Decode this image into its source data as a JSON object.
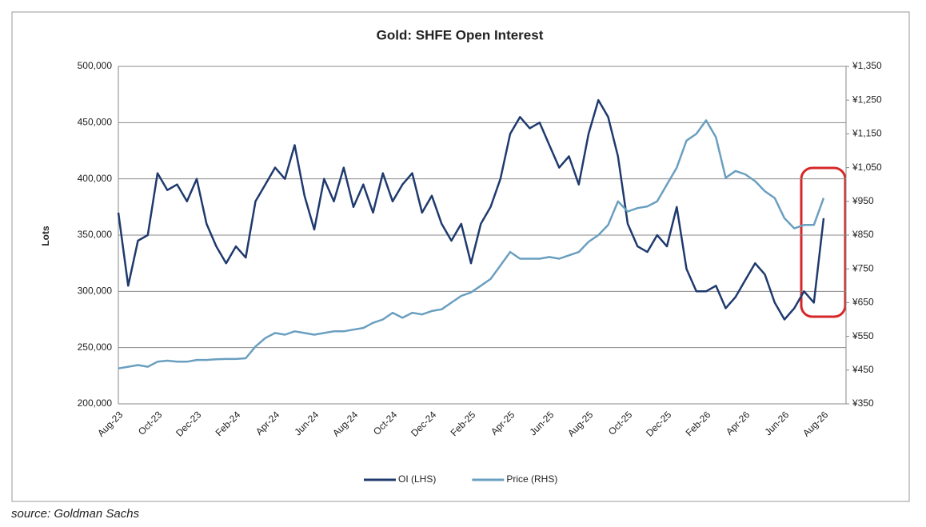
{
  "chart_data": {
    "type": "line",
    "title": "Gold: SHFE Open Interest",
    "y_label": "Lots",
    "source": "source: Goldman Sachs",
    "categories": [
      "Aug-23",
      null,
      null,
      null,
      "Oct-23",
      null,
      null,
      null,
      "Dec-23",
      null,
      null,
      null,
      "Feb-24",
      null,
      null,
      null,
      "Apr-24",
      null,
      null,
      null,
      "Jun-24",
      null,
      null,
      null,
      "Aug-24",
      null,
      null,
      null,
      "Oct-24",
      null,
      null,
      null,
      "Dec-24",
      null,
      null,
      null,
      "Feb-25",
      null,
      null,
      null,
      "Apr-25",
      null,
      null,
      null,
      "Jun-25",
      null,
      null,
      null,
      "Aug-25",
      null,
      null,
      null,
      "Oct-25",
      null,
      null,
      null,
      "Dec-25",
      null,
      null,
      null,
      "Feb-26",
      null,
      null,
      null,
      "Apr-26",
      null,
      null,
      null,
      "Jun-26",
      null,
      null,
      null,
      "Aug-26"
    ],
    "series": [
      {
        "name": "OI (LHS)",
        "color": "#1f3a6e",
        "values": [
          370000,
          305000,
          345000,
          350000,
          405000,
          390000,
          395000,
          380000,
          400000,
          360000,
          340000,
          325000,
          340000,
          330000,
          380000,
          395000,
          410000,
          400000,
          430000,
          385000,
          355000,
          400000,
          380000,
          410000,
          375000,
          395000,
          370000,
          405000,
          380000,
          395000,
          405000,
          370000,
          385000,
          360000,
          345000,
          360000,
          325000,
          360000,
          375000,
          400000,
          440000,
          455000,
          445000,
          450000,
          430000,
          410000,
          420000,
          395000,
          440000,
          470000,
          455000,
          420000,
          360000,
          340000,
          335000,
          350000,
          340000,
          375000,
          320000,
          300000,
          300000,
          305000,
          285000,
          295000,
          310000,
          325000,
          315000,
          290000,
          275000,
          285000,
          300000,
          290000,
          365000
        ]
      },
      {
        "name": "Price (RHS)",
        "color": "#6a9fc0",
        "axis": "y2",
        "values": [
          455,
          460,
          465,
          460,
          475,
          478,
          475,
          475,
          480,
          480,
          482,
          483,
          483,
          485,
          520,
          545,
          560,
          555,
          565,
          560,
          555,
          560,
          565,
          565,
          570,
          575,
          590,
          600,
          620,
          605,
          620,
          615,
          625,
          630,
          650,
          670,
          680,
          700,
          720,
          760,
          800,
          780,
          780,
          780,
          785,
          780,
          790,
          800,
          830,
          850,
          880,
          950,
          920,
          930,
          935,
          950,
          1000,
          1050,
          1130,
          1150,
          1190,
          1140,
          1020,
          1040,
          1030,
          1010,
          980,
          960,
          900,
          870,
          880,
          880,
          960
        ]
      }
    ],
    "ylim": [
      200000,
      500000
    ],
    "yticks": [
      {
        "value": 200000,
        "label": "200,000"
      },
      {
        "value": 250000,
        "label": "250,000"
      },
      {
        "value": 300000,
        "label": "300,000"
      },
      {
        "value": 350000,
        "label": "350,000"
      },
      {
        "value": 400000,
        "label": "400,000"
      },
      {
        "value": 450000,
        "label": "450,000"
      },
      {
        "value": 500000,
        "label": "500,000"
      }
    ],
    "y2lim": [
      350,
      1350
    ],
    "y2ticks": [
      {
        "value": 350,
        "label": "¥350"
      },
      {
        "value": 450,
        "label": "¥450"
      },
      {
        "value": 550,
        "label": "¥550"
      },
      {
        "value": 650,
        "label": "¥650"
      },
      {
        "value": 750,
        "label": "¥750"
      },
      {
        "value": 850,
        "label": "¥850"
      },
      {
        "value": 950,
        "label": "¥950"
      },
      {
        "value": 1050,
        "label": "¥1,050"
      },
      {
        "value": 1150,
        "label": "¥1,150"
      },
      {
        "value": 1250,
        "label": "¥1,250"
      },
      {
        "value": 1350,
        "label": "¥1,350"
      }
    ],
    "grid": true,
    "legend": "bottom"
  }
}
